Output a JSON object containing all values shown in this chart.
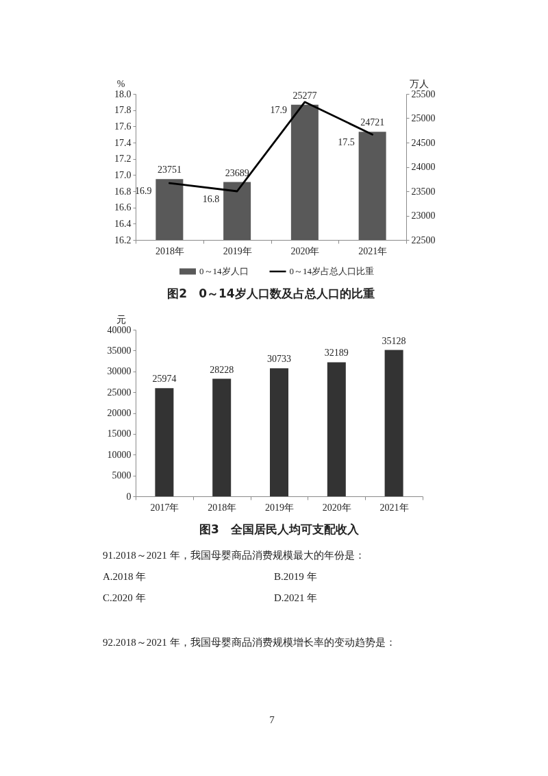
{
  "chart_data": [
    {
      "type": "bar",
      "title": "图2　0～14岁人口数及占总人口的比重",
      "ylabel": "%",
      "y2label": "万人",
      "categories": [
        "2018年",
        "2019年",
        "2020年",
        "2021年"
      ],
      "series": [
        {
          "name": "0～14岁人口",
          "color": "#595959",
          "values": [
            23751,
            23689,
            25277,
            24721
          ],
          "axis": "y2"
        },
        {
          "name": "0～14岁占总人口比重",
          "type": "line",
          "color": "#000000",
          "values": [
            16.9,
            16.8,
            17.9,
            17.5
          ]
        }
      ],
      "ylim": [
        16.2,
        18.0
      ],
      "yticks": [
        16.2,
        16.4,
        16.6,
        16.8,
        {
          "value": 17,
          "label": "17.0"
        },
        17.2,
        17.4,
        17.6,
        17.8,
        {
          "value": 18,
          "label": "18.0"
        }
      ],
      "y2lim": [
        22500,
        25500
      ],
      "y2ticks": [
        22500,
        23000,
        23500,
        24000,
        24500,
        25000,
        25500
      ],
      "data_labels": true,
      "legend": "bottom",
      "grid": false,
      "marker": "none",
      "line_style": "solid"
    },
    {
      "type": "bar",
      "title": "图3　全国居民人均可支配收入",
      "ylabel": "元",
      "categories": [
        "2017年",
        "2018年",
        "2019年",
        "2020年",
        "2021年"
      ],
      "values": [
        25974,
        28228,
        30733,
        32189,
        35128
      ],
      "color": "#333333",
      "ylim": [
        0,
        40000
      ],
      "yticks": [
        0,
        5000,
        10000,
        15000,
        20000,
        25000,
        30000,
        35000,
        40000
      ],
      "data_labels": true,
      "grid": false
    },
    {
      "type": "other",
      "annotations": [
        "91.2018～2021 年，我国母婴商品消费规模最大的年份是：",
        "A.2018 年",
        "B.2019 年",
        "C.2020 年",
        "D.2021 年",
        "92.2018～2021 年，我国母婴商品消费规模增长率的变动趋势是：",
        "7"
      ]
    }
  ]
}
